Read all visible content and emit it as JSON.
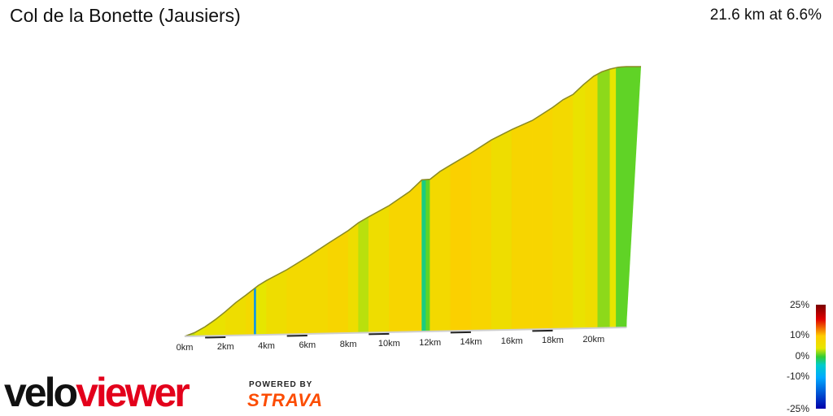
{
  "title": "Col de la Bonette (Jausiers)",
  "summary": "21.6 km at 6.6%",
  "branding": {
    "logo": "veloviewer",
    "powered_by": "POWERED BY",
    "partner": "STRAVA"
  },
  "colors": {
    "profile_outline": "#8a8a22",
    "baseline": "#cfcfcf",
    "accent_orange": "#fc4c02"
  },
  "legend": {
    "labels": [
      "25%",
      "10%",
      "0%",
      "-10%",
      "-25%"
    ],
    "stops": [
      {
        "grade": 25,
        "color": "#7a0000"
      },
      {
        "grade": 18,
        "color": "#e00000"
      },
      {
        "grade": 10,
        "color": "#ffcc00"
      },
      {
        "grade": 4,
        "color": "#e6e600"
      },
      {
        "grade": 0,
        "color": "#33cc33"
      },
      {
        "grade": -4,
        "color": "#00cccc"
      },
      {
        "grade": -10,
        "color": "#00aaff"
      },
      {
        "grade": -25,
        "color": "#0000aa"
      }
    ]
  },
  "chart_data": {
    "type": "area",
    "title": "Col de la Bonette (Jausiers)",
    "xlabel": "",
    "ylabel": "",
    "x_ticks": [
      "0km",
      "2km",
      "4km",
      "6km",
      "8km",
      "10km",
      "12km",
      "14km",
      "16km",
      "18km",
      "20km"
    ],
    "xlim": [
      0,
      21.6
    ],
    "elevation_profile": {
      "x_km": [
        0,
        0.5,
        1,
        1.5,
        2,
        2.5,
        3,
        3.6,
        4,
        5,
        6,
        7,
        8,
        8.5,
        9,
        10,
        11,
        11.6,
        12,
        12.5,
        13,
        14,
        15,
        16,
        17,
        18,
        18.5,
        19,
        19.5,
        20,
        20.4,
        20.8,
        21.2,
        21.6
      ],
      "rel_elevation": [
        0,
        12,
        30,
        52,
        78,
        106,
        130,
        160,
        176,
        210,
        250,
        293,
        335,
        360,
        379,
        415,
        460,
        498,
        500,
        526,
        546,
        585,
        628,
        662,
        692,
        735,
        760,
        778,
        810,
        838,
        853,
        862,
        868,
        870
      ]
    },
    "gradient_bands_pct": [
      {
        "from": 0,
        "to": 0.5,
        "grade": 3
      },
      {
        "from": 0.5,
        "to": 1,
        "grade": 4
      },
      {
        "from": 1,
        "to": 2,
        "grade": 5
      },
      {
        "from": 2,
        "to": 3,
        "grade": 6
      },
      {
        "from": 3,
        "to": 3.4,
        "grade": 7
      },
      {
        "from": 3.4,
        "to": 3.5,
        "grade": -12
      },
      {
        "from": 3.5,
        "to": 4,
        "grade": 4
      },
      {
        "from": 4,
        "to": 5,
        "grade": 6
      },
      {
        "from": 5,
        "to": 6,
        "grade": 7
      },
      {
        "from": 6,
        "to": 7,
        "grade": 7
      },
      {
        "from": 7,
        "to": 8,
        "grade": 8
      },
      {
        "from": 8,
        "to": 8.5,
        "grade": 6
      },
      {
        "from": 8.5,
        "to": 9,
        "grade": 3
      },
      {
        "from": 9,
        "to": 10,
        "grade": 6
      },
      {
        "from": 10,
        "to": 11,
        "grade": 8
      },
      {
        "from": 11,
        "to": 11.6,
        "grade": 8
      },
      {
        "from": 11.6,
        "to": 11.8,
        "grade": -2
      },
      {
        "from": 11.8,
        "to": 12,
        "grade": 1
      },
      {
        "from": 12,
        "to": 13,
        "grade": 7
      },
      {
        "from": 13,
        "to": 14,
        "grade": 9
      },
      {
        "from": 14,
        "to": 15,
        "grade": 8
      },
      {
        "from": 15,
        "to": 16,
        "grade": 6
      },
      {
        "from": 16,
        "to": 17,
        "grade": 8
      },
      {
        "from": 17,
        "to": 18,
        "grade": 8
      },
      {
        "from": 18,
        "to": 19,
        "grade": 7
      },
      {
        "from": 19,
        "to": 19.6,
        "grade": 5
      },
      {
        "from": 19.6,
        "to": 20.2,
        "grade": 6
      },
      {
        "from": 20.2,
        "to": 20.8,
        "grade": 2
      },
      {
        "from": 20.8,
        "to": 21.1,
        "grade": 4
      },
      {
        "from": 21.1,
        "to": 21.6,
        "grade": 1
      }
    ]
  }
}
